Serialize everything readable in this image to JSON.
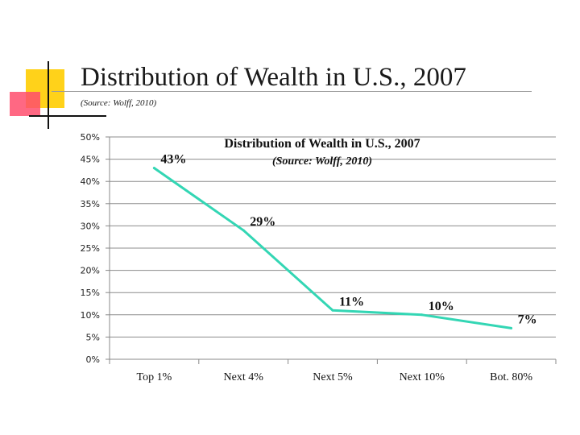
{
  "slide": {
    "title": "Distribution of Wealth in U.S., 2007",
    "subtitle": "(Source: Wolff, 2010)"
  },
  "chart_data": {
    "type": "line",
    "title": "Distribution of Wealth in U.S., 2007",
    "subtitle": "(Source: Wolff, 2010)",
    "categories": [
      "Top 1%",
      "Next 4%",
      "Next 5%",
      "Next 10%",
      "Bot. 80%"
    ],
    "series": [
      {
        "values": [
          43,
          29,
          11,
          10,
          7
        ],
        "color": "#33d6b4"
      }
    ],
    "data_labels": [
      "43%",
      "29%",
      "11%",
      "10%",
      "7%"
    ],
    "yticks": [
      0,
      5,
      10,
      15,
      20,
      25,
      30,
      35,
      40,
      45,
      50
    ],
    "ytick_labels": [
      "0%",
      "5%",
      "10%",
      "15%",
      "20%",
      "25%",
      "30%",
      "35%",
      "40%",
      "45%",
      "50%"
    ],
    "ylim": [
      0,
      50
    ],
    "grid": true,
    "legend": "none"
  }
}
